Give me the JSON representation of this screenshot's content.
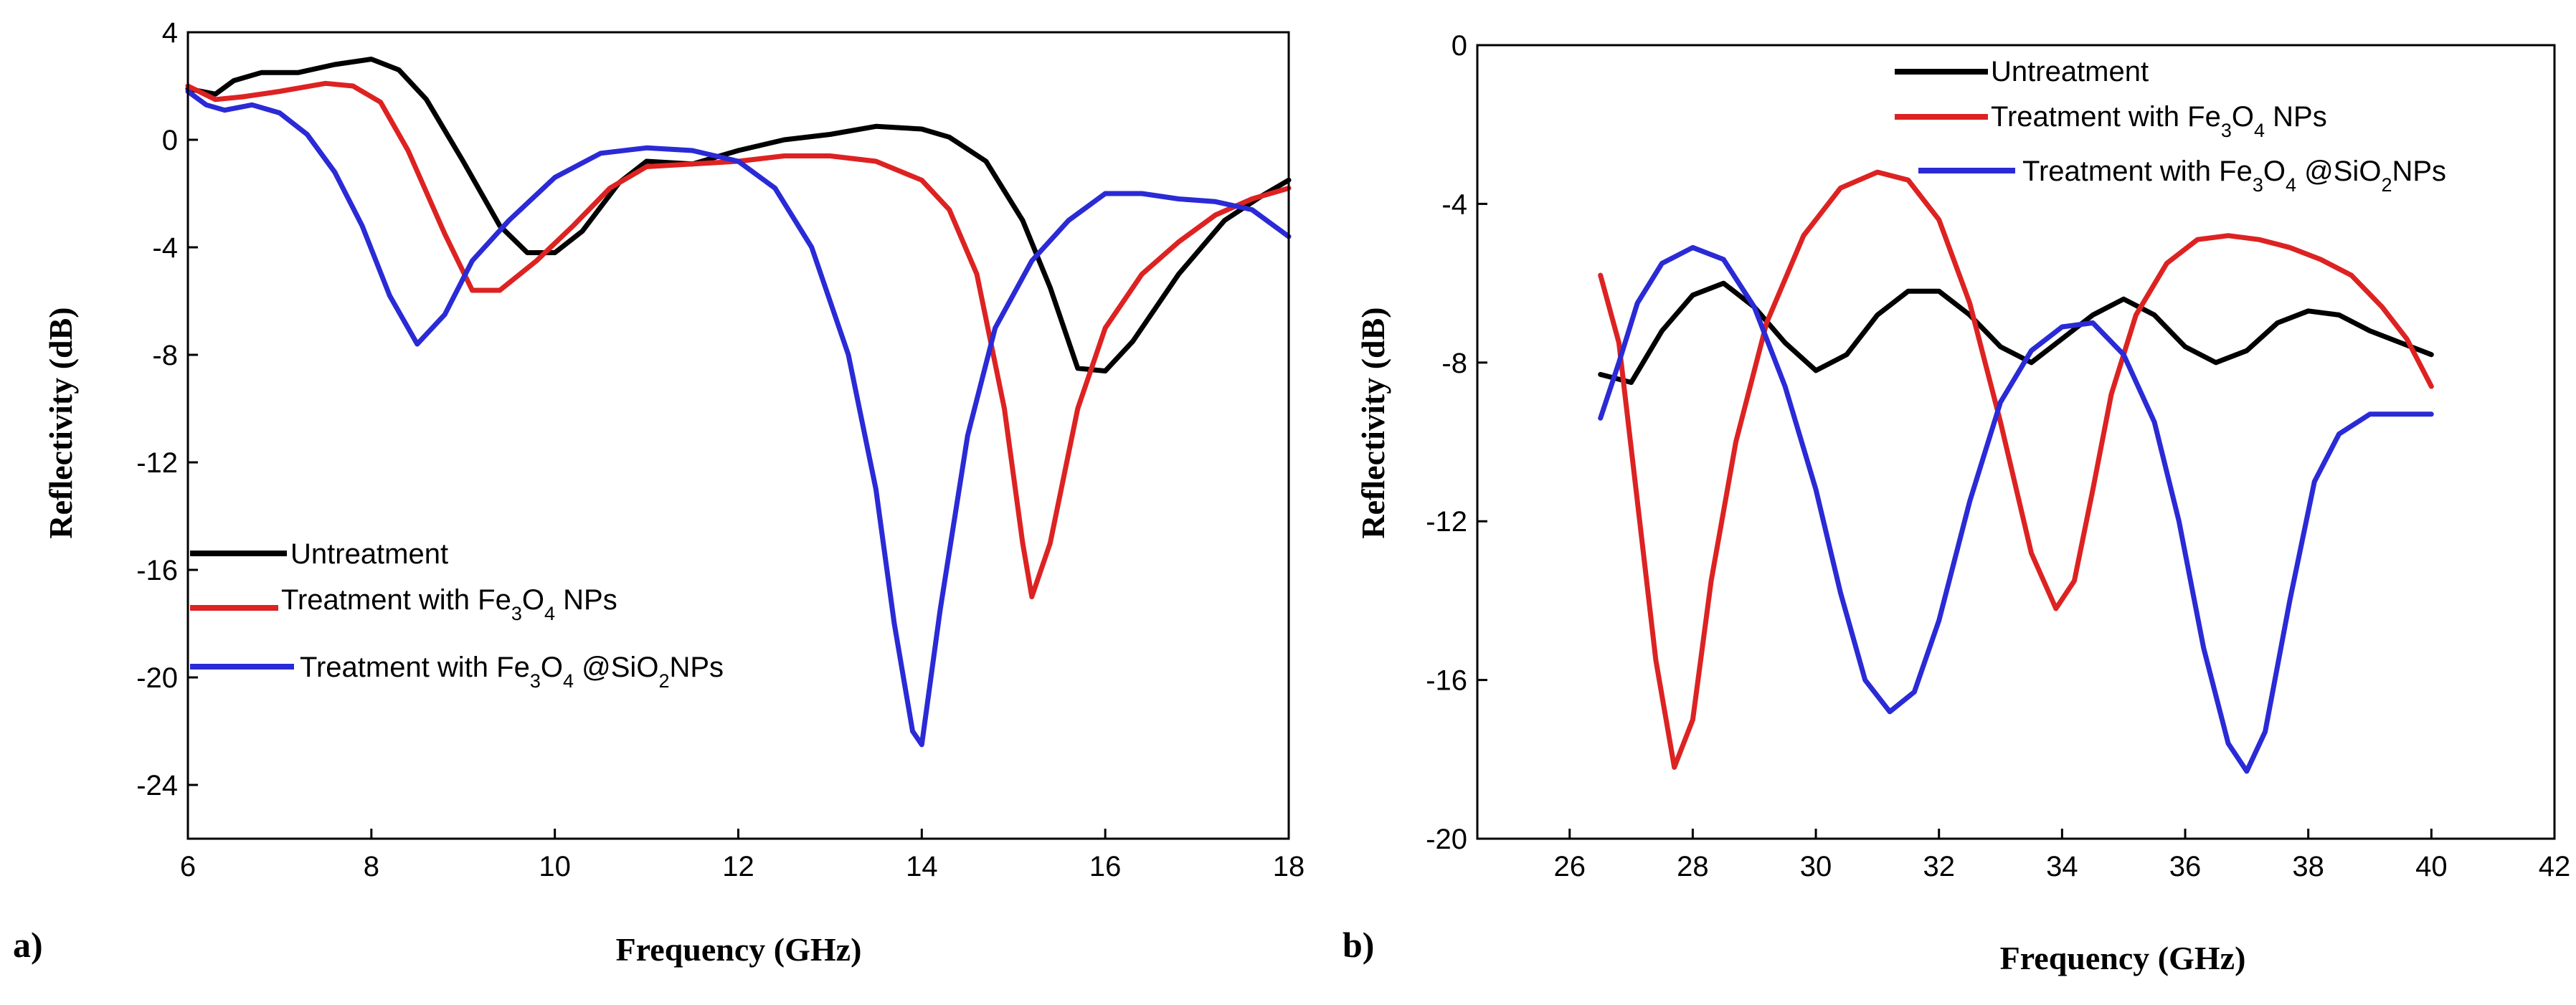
{
  "chart_data": [
    {
      "panel": "a)",
      "type": "line",
      "title": "",
      "xlabel": "Frequency (GHz)",
      "ylabel": "Reflectivity (dB)",
      "xlim": [
        6,
        18
      ],
      "ylim": [
        -26,
        4
      ],
      "xticks": [
        6,
        8,
        10,
        12,
        14,
        16,
        18
      ],
      "yticks": [
        4,
        0,
        -4,
        -8,
        -12,
        -16,
        -20,
        -24
      ],
      "legend_position": "lower-left",
      "series": [
        {
          "name": "Untreatment",
          "color": "#000000",
          "x": [
            6,
            6.3,
            6.5,
            6.8,
            7.2,
            7.6,
            8,
            8.3,
            8.6,
            9,
            9.4,
            9.7,
            10,
            10.3,
            10.7,
            11,
            11.5,
            12,
            12.5,
            13,
            13.5,
            14,
            14.3,
            14.7,
            15.1,
            15.4,
            15.7,
            16,
            16.3,
            16.8,
            17.3,
            17.7,
            18
          ],
          "values": [
            1.9,
            1.7,
            2.2,
            2.5,
            2.5,
            2.8,
            3.0,
            2.6,
            1.5,
            -0.8,
            -3.2,
            -4.2,
            -4.2,
            -3.4,
            -1.6,
            -0.8,
            -0.9,
            -0.4,
            0.0,
            0.2,
            0.5,
            0.4,
            0.1,
            -0.8,
            -3.0,
            -5.5,
            -8.5,
            -8.6,
            -7.5,
            -5.0,
            -3.0,
            -2.1,
            -1.5
          ]
        },
        {
          "name": "Treatment with Fe3O4 NPs",
          "color": "#dd2222",
          "x": [
            6,
            6.3,
            6.6,
            7,
            7.5,
            7.8,
            8.1,
            8.4,
            8.8,
            9.1,
            9.4,
            9.8,
            10.2,
            10.6,
            11,
            11.5,
            12,
            12.5,
            13,
            13.5,
            14,
            14.3,
            14.6,
            14.9,
            15.1,
            15.2,
            15.4,
            15.7,
            16,
            16.4,
            16.8,
            17.2,
            17.6,
            18
          ],
          "values": [
            2.0,
            1.5,
            1.6,
            1.8,
            2.1,
            2.0,
            1.4,
            -0.4,
            -3.5,
            -5.6,
            -5.6,
            -4.5,
            -3.2,
            -1.8,
            -1.0,
            -0.9,
            -0.8,
            -0.6,
            -0.6,
            -0.8,
            -1.5,
            -2.6,
            -5.0,
            -10.0,
            -15.0,
            -17.0,
            -15.0,
            -10.0,
            -7.0,
            -5.0,
            -3.8,
            -2.8,
            -2.2,
            -1.8
          ]
        },
        {
          "name": "Treatment with Fe3O4 @SiO2NPs",
          "color": "#2a2ad6",
          "x": [
            6,
            6.2,
            6.4,
            6.7,
            7,
            7.3,
            7.6,
            7.9,
            8.2,
            8.5,
            8.8,
            9.1,
            9.5,
            10,
            10.5,
            11,
            11.5,
            12,
            12.4,
            12.8,
            13.2,
            13.5,
            13.7,
            13.9,
            14,
            14.2,
            14.5,
            14.8,
            15.2,
            15.6,
            16,
            16.4,
            16.8,
            17.2,
            17.6,
            18
          ],
          "values": [
            1.8,
            1.3,
            1.1,
            1.3,
            1.0,
            0.2,
            -1.2,
            -3.2,
            -5.8,
            -7.6,
            -6.5,
            -4.5,
            -3.0,
            -1.4,
            -0.5,
            -0.3,
            -0.4,
            -0.8,
            -1.8,
            -4.0,
            -8.0,
            -13.0,
            -18.0,
            -22.0,
            -22.5,
            -17.5,
            -11.0,
            -7.0,
            -4.5,
            -3.0,
            -2.0,
            -2.0,
            -2.2,
            -2.3,
            -2.6,
            -3.6
          ]
        }
      ]
    },
    {
      "panel": "b)",
      "type": "line",
      "title": "",
      "xlabel": "Frequency (GHz)",
      "ylabel": "Reflectivity (dB)",
      "xlim": [
        24.5,
        42
      ],
      "ylim": [
        -20,
        0
      ],
      "xticks": [
        26,
        28,
        30,
        32,
        34,
        36,
        38,
        40,
        42
      ],
      "yticks": [
        0,
        -4,
        -8,
        -12,
        -16,
        -20
      ],
      "legend_position": "top",
      "series": [
        {
          "name": "Untreatment",
          "color": "#000000",
          "x": [
            26.5,
            27,
            27.5,
            28,
            28.5,
            29,
            29.5,
            30,
            30.5,
            31,
            31.5,
            32,
            32.5,
            33,
            33.5,
            34,
            34.5,
            35,
            35.5,
            36,
            36.5,
            37,
            37.5,
            38,
            38.5,
            39,
            39.5,
            40
          ],
          "values": [
            -8.3,
            -8.5,
            -7.2,
            -6.3,
            -6.0,
            -6.6,
            -7.5,
            -8.2,
            -7.8,
            -6.8,
            -6.2,
            -6.2,
            -6.8,
            -7.6,
            -8.0,
            -7.4,
            -6.8,
            -6.4,
            -6.8,
            -7.6,
            -8.0,
            -7.7,
            -7.0,
            -6.7,
            -6.8,
            -7.2,
            -7.5,
            -7.8
          ]
        },
        {
          "name": "Treatment with Fe3O4 NPs",
          "color": "#dd2222",
          "x": [
            26.5,
            26.8,
            27.1,
            27.4,
            27.7,
            28,
            28.3,
            28.7,
            29.2,
            29.8,
            30.4,
            31,
            31.5,
            32,
            32.5,
            33,
            33.5,
            33.9,
            34.2,
            34.5,
            34.8,
            35.2,
            35.7,
            36.2,
            36.7,
            37.2,
            37.7,
            38.2,
            38.7,
            39.2,
            39.6,
            40
          ],
          "values": [
            -5.8,
            -7.5,
            -11.5,
            -15.5,
            -18.2,
            -17.0,
            -13.5,
            -10.0,
            -7.0,
            -4.8,
            -3.6,
            -3.2,
            -3.4,
            -4.4,
            -6.5,
            -9.5,
            -12.8,
            -14.2,
            -13.5,
            -11.2,
            -8.8,
            -6.8,
            -5.5,
            -4.9,
            -4.8,
            -4.9,
            -5.1,
            -5.4,
            -5.8,
            -6.6,
            -7.4,
            -8.6
          ]
        },
        {
          "name": "Treatment with Fe3O4 @SiO2NPs",
          "color": "#2a2ad6",
          "x": [
            26.5,
            26.8,
            27.1,
            27.5,
            28,
            28.5,
            29,
            29.5,
            30,
            30.4,
            30.8,
            31.2,
            31.6,
            32,
            32.5,
            33,
            33.5,
            34,
            34.5,
            35,
            35.5,
            35.9,
            36.3,
            36.7,
            37,
            37.3,
            37.7,
            38.1,
            38.5,
            39,
            39.5,
            40
          ],
          "values": [
            -9.4,
            -8.0,
            -6.5,
            -5.5,
            -5.1,
            -5.4,
            -6.6,
            -8.6,
            -11.2,
            -13.8,
            -16.0,
            -16.8,
            -16.3,
            -14.5,
            -11.5,
            -9.0,
            -7.7,
            -7.1,
            -7.0,
            -7.8,
            -9.5,
            -12.0,
            -15.2,
            -17.6,
            -18.3,
            -17.3,
            -14.0,
            -11.0,
            -9.8,
            -9.3,
            -9.3,
            -9.3
          ]
        }
      ]
    }
  ],
  "legend_parts": [
    {
      "main": "Untreatment"
    },
    {
      "p1": "Treatment with Fe",
      "s1": "3",
      "p2": "O",
      "s2": "4",
      "p3": " NPs"
    },
    {
      "p1": "Treatment with Fe",
      "s1": "3",
      "p2": "O",
      "s2": "4",
      "p3": " @SiO",
      "s3": "2",
      "p4": "NPs"
    }
  ]
}
